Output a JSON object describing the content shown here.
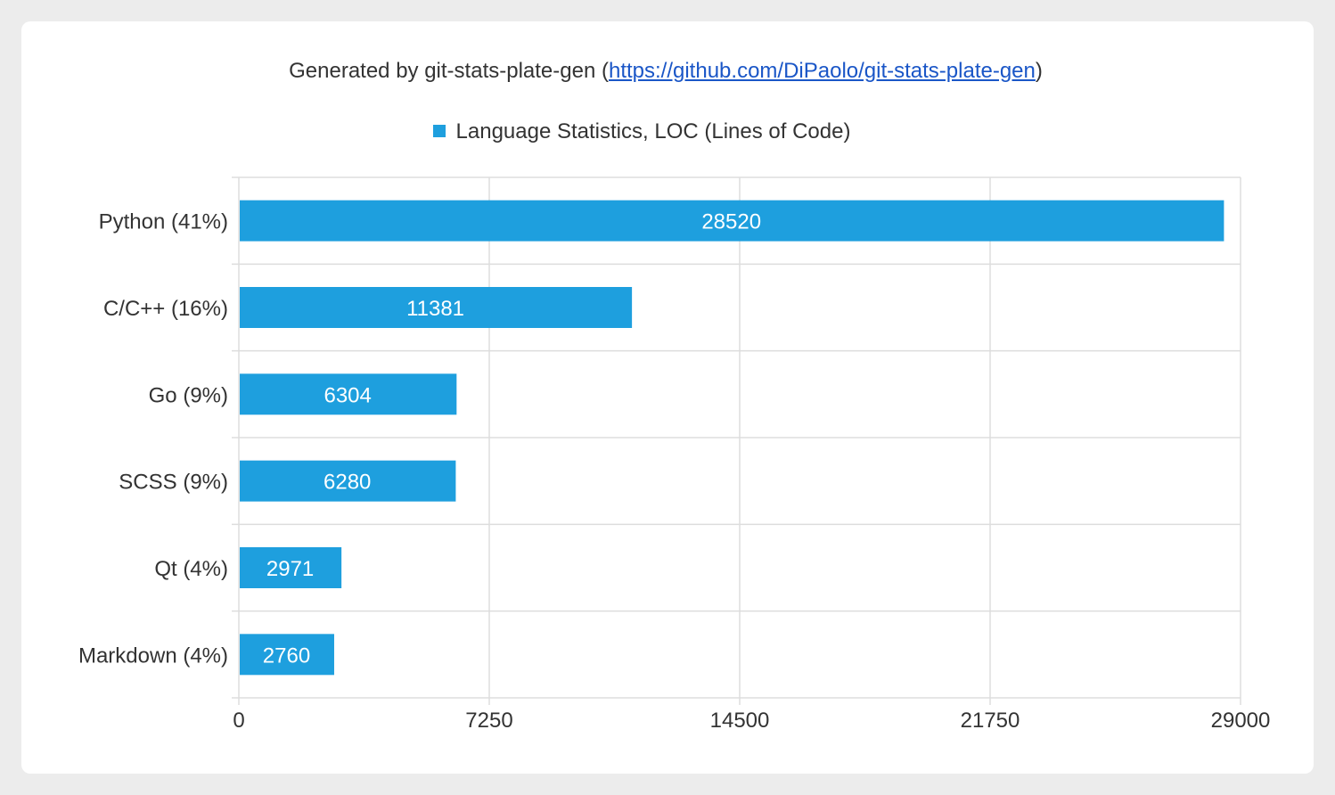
{
  "header": {
    "prefix": "Generated by git-stats-plate-gen (",
    "link_text": "https://github.com/DiPaolo/git-stats-plate-gen",
    "suffix": ")"
  },
  "colors": {
    "bar": "#1e9fde",
    "grid": "#dddddd",
    "text": "#333333",
    "link": "#1a56c7"
  },
  "chart_data": {
    "type": "bar",
    "orientation": "horizontal",
    "legend": "Language Statistics, LOC (Lines of Code)",
    "legend_position": "top-center",
    "grid": true,
    "categories": [
      "Python (41%)",
      "C/C++ (16%)",
      "Go (9%)",
      "SCSS (9%)",
      "Qt (4%)",
      "Markdown (4%)"
    ],
    "series": [
      {
        "name": "Language Statistics, LOC (Lines of Code)",
        "values": [
          28520,
          11381,
          6304,
          6280,
          2971,
          2760
        ]
      }
    ],
    "xlim": [
      0,
      29000
    ],
    "xticks": [
      0,
      7250,
      14500,
      21750,
      29000
    ]
  }
}
